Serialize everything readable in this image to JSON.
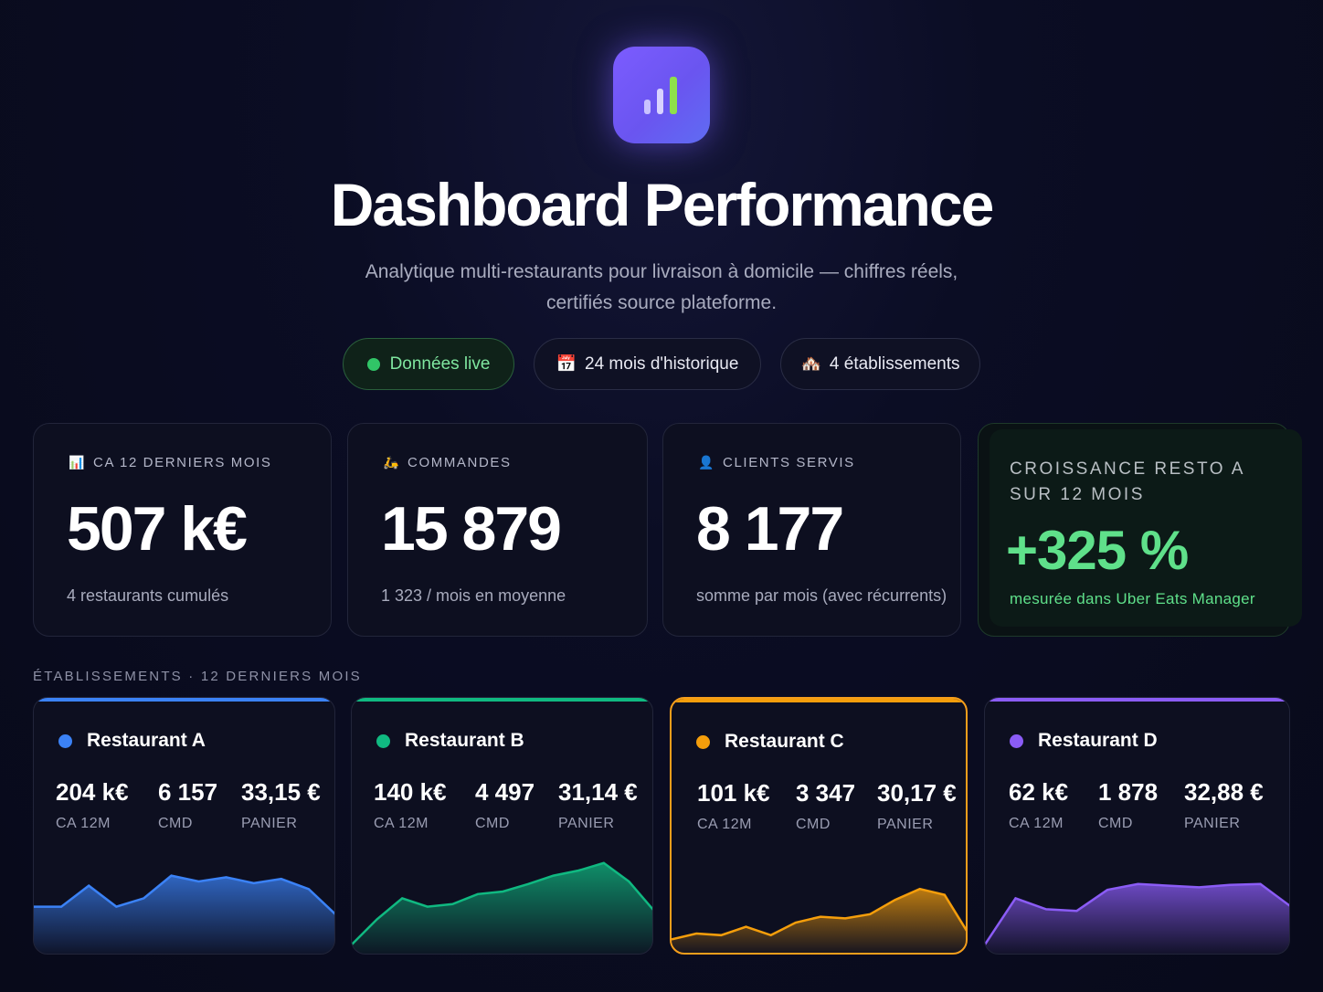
{
  "header": {
    "logo_icon": "bar-chart-icon",
    "title": "Dashboard Performance",
    "subtitle": "Analytique multi-restaurants pour livraison à domicile — chiffres réels, certifiés source plateforme."
  },
  "pills": [
    {
      "label": "Données live",
      "icon": "green-dot"
    },
    {
      "label": "24 mois d'historique",
      "icon": "📅"
    },
    {
      "label": "4 établissements",
      "icon": "🏘️"
    }
  ],
  "kpis": [
    {
      "icon": "📊",
      "label": "CA 12 derniers mois",
      "value": "507 k€",
      "sub": "4 restaurants cumulés"
    },
    {
      "icon": "🛵",
      "label": "Commandes",
      "value": "15 879",
      "sub": "1 323 / mois en moyenne"
    },
    {
      "icon": "👤",
      "label": "Clients servis",
      "value": "8 177",
      "sub": "somme par mois (avec récurrents)"
    }
  ],
  "growth": {
    "label": "Croissance Resto A sur 12 mois",
    "value": "+325 %",
    "sub": "mesurée dans Uber Eats Manager",
    "color": "#5fe08a"
  },
  "section_label": "Établissements · 12 derniers mois",
  "restaurants": [
    {
      "name": "Restaurant A",
      "color": "#3b82f6",
      "ca": "204 k€",
      "cmd": "6 157",
      "panier": "33,15 €",
      "ca_label": "CA 12M",
      "cmd_label": "CMD",
      "panier_label": "PANIER",
      "trend": [
        0.45,
        0.45,
        0.7,
        0.45,
        0.55,
        0.82,
        0.75,
        0.8,
        0.73,
        0.78,
        0.66,
        0.35
      ]
    },
    {
      "name": "Restaurant B",
      "color": "#10b981",
      "ca": "140 k€",
      "cmd": "4 497",
      "panier": "31,14 €",
      "ca_label": "CA 12M",
      "cmd_label": "CMD",
      "panier_label": "PANIER",
      "trend": [
        0.0,
        0.3,
        0.55,
        0.45,
        0.48,
        0.6,
        0.63,
        0.72,
        0.82,
        0.88,
        0.97,
        0.75,
        0.4
      ]
    },
    {
      "name": "Restaurant C",
      "color": "#f59e0b",
      "ca": "101 k€",
      "cmd": "3 347",
      "panier": "30,17 €",
      "ca_label": "CA 12M",
      "cmd_label": "CMD",
      "panier_label": "PANIER",
      "trend": [
        0.05,
        0.12,
        0.1,
        0.2,
        0.1,
        0.25,
        0.32,
        0.3,
        0.35,
        0.52,
        0.65,
        0.58,
        0.1
      ]
    },
    {
      "name": "Restaurant D",
      "color": "#8b5cf6",
      "ca": "62 k€",
      "cmd": "1 878",
      "panier": "32,88 €",
      "ca_label": "CA 12M",
      "cmd_label": "CMD",
      "panier_label": "PANIER",
      "trend": [
        0.0,
        0.55,
        0.42,
        0.4,
        0.65,
        0.72,
        0.7,
        0.68,
        0.71,
        0.72,
        0.45
      ]
    }
  ]
}
